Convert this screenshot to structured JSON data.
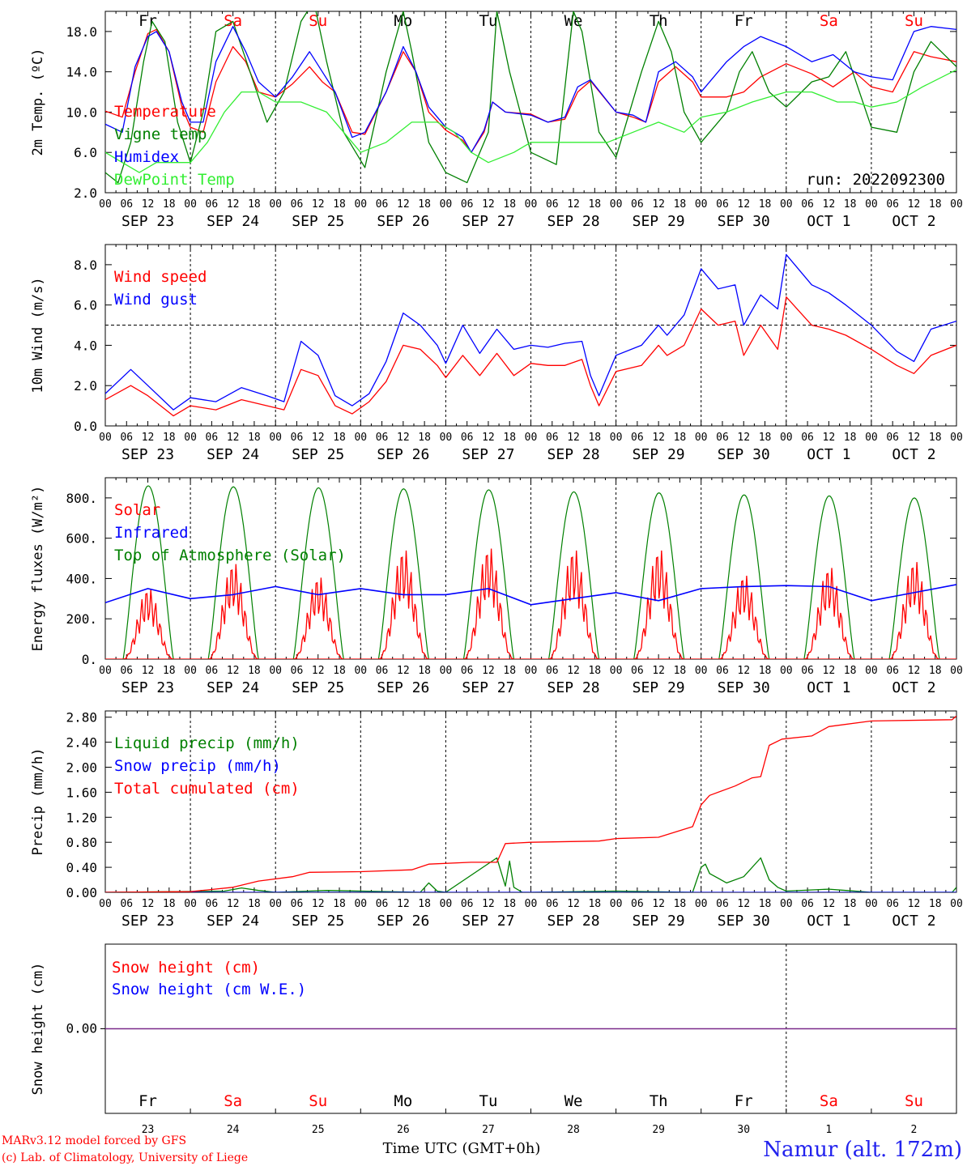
{
  "colors": {
    "red": "#ff0000",
    "blue": "#0000ff",
    "green": "#008000",
    "lightgreen": "#33ee33",
    "purple": "#7a2a8a",
    "black": "#000000"
  },
  "days": [
    "Fr",
    "Sa",
    "Su",
    "Mo",
    "Tu",
    "We",
    "Th",
    "Fr",
    "Sa",
    "Su"
  ],
  "weekend_flags": [
    false,
    true,
    true,
    false,
    false,
    false,
    false,
    false,
    true,
    true
  ],
  "date_labels": [
    "SEP 23",
    "SEP 24",
    "SEP 25",
    "SEP 26",
    "SEP 27",
    "SEP 28",
    "SEP 29",
    "SEP 30",
    "OCT  1",
    "OCT  2"
  ],
  "day_numbers": [
    "23",
    "24",
    "25",
    "26",
    "27",
    "28",
    "29",
    "30",
    "1",
    "2"
  ],
  "hour_ticks": [
    "00",
    "06",
    "12",
    "18"
  ],
  "run_label": "run: 2022092300",
  "footer": {
    "line1": "MARv3.12 model forced by GFS",
    "line2": "(c) Lab. of Climatology, University of Liege",
    "time_axis": "Time UTC (GMT+0h)",
    "station": "Namur (alt. 172m)"
  },
  "chart_data": [
    {
      "type": "line",
      "ylabel": "2m Temp. (ºC)",
      "ylim": [
        2,
        20
      ],
      "yticks": [
        "2.0",
        "6.0",
        "10.0",
        "14.0",
        "18.0"
      ],
      "ytick_values": [
        2,
        6,
        10,
        14,
        18
      ],
      "x_unit": "days since SEP 23 00 UTC",
      "series": [
        {
          "name": "Temperature",
          "color": "#ff0000",
          "x": [
            0,
            0.2,
            0.35,
            0.5,
            0.6,
            0.75,
            0.9,
            1.0,
            1.15,
            1.3,
            1.5,
            1.65,
            1.8,
            2.0,
            2.2,
            2.4,
            2.55,
            2.7,
            2.9,
            3.05,
            3.3,
            3.5,
            3.65,
            3.8,
            4.0,
            4.2,
            4.3,
            4.45,
            4.55,
            4.7,
            5.0,
            5.2,
            5.4,
            5.55,
            5.7,
            6.0,
            6.2,
            6.35,
            6.5,
            6.7,
            6.9,
            7.0,
            7.3,
            7.5,
            7.7,
            8.0,
            8.3,
            8.55,
            8.8,
            9.0,
            9.25,
            9.5,
            9.7,
            10.0
          ],
          "y": [
            10.1,
            9.5,
            14,
            17.8,
            18.2,
            16,
            10.5,
            8.5,
            8,
            13,
            16.5,
            15,
            12,
            11.5,
            12.8,
            14.5,
            13,
            12,
            8,
            7.8,
            12,
            16,
            14,
            10,
            8.2,
            7.2,
            6,
            8,
            11,
            10,
            9.8,
            9,
            9.3,
            12,
            13.1,
            10,
            9.5,
            9,
            13,
            14.5,
            13,
            11.5,
            11.5,
            12,
            13.5,
            14.8,
            13.8,
            12.5,
            14,
            12.5,
            12,
            16,
            15.5,
            15
          ]
        },
        {
          "name": "Vigne temp",
          "color": "#008000",
          "x": [
            0,
            0.15,
            0.3,
            0.45,
            0.55,
            0.7,
            0.85,
            1.0,
            1.15,
            1.3,
            1.5,
            1.7,
            1.9,
            2.1,
            2.3,
            2.45,
            2.6,
            2.8,
            3.05,
            3.3,
            3.5,
            3.6,
            3.8,
            4.0,
            4.25,
            4.5,
            4.6,
            4.75,
            5.0,
            5.3,
            5.5,
            5.6,
            5.8,
            6.0,
            6.3,
            6.5,
            6.65,
            6.8,
            7.0,
            7.3,
            7.45,
            7.6,
            7.8,
            8.0,
            8.3,
            8.5,
            8.7,
            9.0,
            9.3,
            9.5,
            9.7,
            10.0
          ],
          "y": [
            4,
            3,
            7,
            15,
            19,
            17,
            9,
            5,
            10,
            18,
            19,
            14,
            9,
            12,
            19,
            21,
            15,
            8,
            4.5,
            14,
            20,
            16,
            7,
            4,
            3,
            8,
            20,
            14,
            6,
            4.8,
            20,
            18,
            8,
            5.5,
            14,
            19,
            16,
            10,
            7,
            10,
            14,
            16,
            12,
            10.5,
            13,
            13.5,
            16,
            8.5,
            8,
            14,
            17,
            14.5
          ]
        },
        {
          "name": "Humidex",
          "color": "#0000ff",
          "x": [
            0,
            0.2,
            0.35,
            0.5,
            0.6,
            0.75,
            0.9,
            1.0,
            1.15,
            1.3,
            1.5,
            1.65,
            1.8,
            2.0,
            2.2,
            2.4,
            2.55,
            2.7,
            2.9,
            3.05,
            3.3,
            3.5,
            3.65,
            3.8,
            4.0,
            4.2,
            4.3,
            4.45,
            4.55,
            4.7,
            5.0,
            5.2,
            5.4,
            5.55,
            5.7,
            6.0,
            6.2,
            6.35,
            6.5,
            6.7,
            6.9,
            7.0,
            7.3,
            7.5,
            7.7,
            8.0,
            8.3,
            8.55,
            8.8,
            9.0,
            9.25,
            9.5,
            9.7,
            10.0
          ],
          "y": [
            8.8,
            8,
            14.5,
            17.5,
            18,
            16,
            11,
            9,
            9,
            15,
            18.5,
            16,
            13,
            11.5,
            13.5,
            16,
            14,
            12,
            7.5,
            8,
            12,
            16.5,
            14,
            10.5,
            8.5,
            7.5,
            6,
            8.2,
            11,
            10,
            9.7,
            9,
            9.5,
            12.5,
            13.2,
            10,
            9.7,
            9,
            14,
            15,
            13.5,
            12,
            15,
            16.5,
            17.5,
            16.5,
            15,
            15.7,
            14,
            13.5,
            13.2,
            18,
            18.5,
            18.2
          ]
        },
        {
          "name": "DewPoint Temp",
          "color": "#33ee33",
          "x": [
            0,
            0.2,
            0.4,
            0.6,
            0.8,
            1.0,
            1.2,
            1.4,
            1.6,
            1.8,
            2.0,
            2.3,
            2.6,
            2.8,
            3.0,
            3.3,
            3.6,
            3.9,
            4.1,
            4.3,
            4.5,
            4.8,
            5.0,
            5.3,
            5.6,
            5.9,
            6.2,
            6.5,
            6.8,
            7.0,
            7.3,
            7.6,
            7.8,
            8.0,
            8.3,
            8.6,
            8.8,
            9.0,
            9.3,
            9.6,
            10.0
          ],
          "y": [
            6,
            5,
            4,
            5,
            5,
            5,
            7,
            10,
            12,
            12,
            11,
            11,
            10,
            8,
            6,
            7,
            9,
            9,
            8,
            6,
            5,
            6,
            7,
            7,
            7,
            7,
            8,
            9,
            8,
            9.5,
            10,
            11,
            11.5,
            12,
            12,
            11,
            11,
            10.5,
            11,
            12.5,
            14.2
          ]
        }
      ]
    },
    {
      "type": "line",
      "ylabel": "10m Wind (m/s)",
      "ylim": [
        0,
        9
      ],
      "yticks": [
        "0.0",
        "2.0",
        "4.0",
        "6.0",
        "8.0"
      ],
      "ytick_values": [
        0,
        2,
        4,
        6,
        8
      ],
      "threshold": 5,
      "series": [
        {
          "name": "Wind speed",
          "color": "#ff0000",
          "x": [
            0,
            0.3,
            0.5,
            0.8,
            1.0,
            1.3,
            1.6,
            1.9,
            2.1,
            2.3,
            2.5,
            2.7,
            2.9,
            3.1,
            3.3,
            3.5,
            3.7,
            3.9,
            4.0,
            4.2,
            4.4,
            4.6,
            4.8,
            5.0,
            5.2,
            5.4,
            5.6,
            5.7,
            5.8,
            6.0,
            6.3,
            6.5,
            6.6,
            6.8,
            7.0,
            7.2,
            7.4,
            7.5,
            7.7,
            7.9,
            8.0,
            8.3,
            8.5,
            8.7,
            9.0,
            9.3,
            9.5,
            9.7,
            10.0
          ],
          "y": [
            1.3,
            2,
            1.5,
            0.5,
            1,
            0.8,
            1.3,
            1,
            0.8,
            2.8,
            2.5,
            1,
            0.6,
            1.2,
            2.2,
            4,
            3.8,
            3,
            2.4,
            3.5,
            2.5,
            3.6,
            2.5,
            3.1,
            3,
            3,
            3.3,
            2,
            1,
            2.7,
            3,
            4,
            3.5,
            4,
            5.8,
            5,
            5.2,
            3.5,
            5,
            3.8,
            6.4,
            5,
            4.8,
            4.5,
            3.8,
            3,
            2.6,
            3.5,
            4
          ]
        },
        {
          "name": "Wind gust",
          "color": "#0000ff",
          "x": [
            0,
            0.3,
            0.5,
            0.8,
            1.0,
            1.3,
            1.6,
            1.9,
            2.1,
            2.3,
            2.5,
            2.7,
            2.9,
            3.1,
            3.3,
            3.5,
            3.7,
            3.9,
            4.0,
            4.2,
            4.4,
            4.6,
            4.8,
            5.0,
            5.2,
            5.4,
            5.6,
            5.7,
            5.8,
            6.0,
            6.3,
            6.5,
            6.6,
            6.8,
            7.0,
            7.2,
            7.4,
            7.5,
            7.7,
            7.9,
            8.0,
            8.3,
            8.5,
            8.7,
            9.0,
            9.3,
            9.5,
            9.7,
            10.0
          ],
          "y": [
            1.6,
            2.8,
            2,
            0.8,
            1.4,
            1.2,
            1.9,
            1.5,
            1.2,
            4.2,
            3.5,
            1.5,
            1,
            1.6,
            3.2,
            5.6,
            5,
            4,
            3.1,
            5,
            3.6,
            4.8,
            3.8,
            4,
            3.9,
            4.1,
            4.2,
            2.5,
            1.5,
            3.5,
            4,
            5,
            4.5,
            5.5,
            7.8,
            6.8,
            7,
            5,
            6.5,
            5.8,
            8.5,
            7,
            6.6,
            6,
            5,
            3.7,
            3.2,
            4.8,
            5.2
          ]
        }
      ]
    },
    {
      "type": "line",
      "ylabel": "Energy fluxes (W/m²)",
      "ylim": [
        0,
        900
      ],
      "yticks": [
        "0.",
        "200.",
        "400.",
        "600.",
        "800."
      ],
      "ytick_values": [
        0,
        200,
        400,
        600,
        800
      ],
      "solar_peaks": [
        360,
        490,
        420,
        560,
        570,
        560,
        560,
        430,
        470,
        500
      ],
      "toa_peaks": [
        860,
        855,
        850,
        845,
        840,
        830,
        825,
        815,
        810,
        800
      ],
      "infrared_x": [
        0,
        0.5,
        1.0,
        1.5,
        2.0,
        2.5,
        3.0,
        3.5,
        4.0,
        4.5,
        5.0,
        5.5,
        6.0,
        6.5,
        7.0,
        7.5,
        8.0,
        8.5,
        9.0,
        9.5,
        10.0
      ],
      "infrared_y": [
        280,
        350,
        300,
        320,
        360,
        320,
        350,
        320,
        320,
        350,
        270,
        300,
        330,
        290,
        350,
        360,
        365,
        360,
        290,
        330,
        370
      ],
      "series": [
        {
          "name": "Solar",
          "color": "#ff0000"
        },
        {
          "name": "Infrared",
          "color": "#0000ff"
        },
        {
          "name": "Top of Atmosphere (Solar)",
          "color": "#008000"
        }
      ]
    },
    {
      "type": "line",
      "ylabel": "Precip (mm/h)",
      "ylim": [
        0,
        2.9
      ],
      "yticks": [
        "0.00",
        "0.40",
        "0.80",
        "1.20",
        "1.60",
        "2.00",
        "2.40",
        "2.80"
      ],
      "ytick_values": [
        0,
        0.4,
        0.8,
        1.2,
        1.6,
        2.0,
        2.4,
        2.8
      ],
      "series": [
        {
          "name": "Liquid precip (mm/h)",
          "color": "#008000",
          "x": [
            0,
            1.4,
            1.6,
            1.8,
            2.0,
            2.6,
            3.7,
            3.8,
            3.9,
            4.0,
            4.6,
            4.7,
            4.75,
            4.8,
            4.9,
            5.0,
            6.0,
            6.9,
            7.0,
            7.05,
            7.1,
            7.3,
            7.5,
            7.7,
            7.8,
            7.9,
            8.0,
            8.5,
            8.7,
            9.0,
            9.95,
            10.0
          ],
          "y": [
            0,
            0.02,
            0.07,
            0.03,
            0,
            0.03,
            0,
            0.15,
            0.02,
            0,
            0.55,
            0.1,
            0.5,
            0.08,
            0,
            0,
            0.02,
            0,
            0.4,
            0.45,
            0.3,
            0.15,
            0.25,
            0.55,
            0.2,
            0.08,
            0.02,
            0.05,
            0.03,
            0,
            0,
            0.08
          ]
        },
        {
          "name": "Snow precip (mm/h)",
          "color": "#0000ff",
          "x": [
            0,
            10
          ],
          "y": [
            0,
            0
          ]
        },
        {
          "name": "Total cumulated (cm)",
          "color": "#ff0000",
          "x": [
            0,
            1.0,
            1.5,
            1.8,
            2.2,
            2.4,
            3.0,
            3.6,
            3.8,
            4.3,
            4.6,
            4.7,
            5.0,
            5.8,
            6.0,
            6.5,
            6.9,
            7.0,
            7.1,
            7.4,
            7.6,
            7.7,
            7.8,
            7.95,
            8.3,
            8.5,
            9.0,
            9.95,
            10.0
          ],
          "y": [
            0,
            0.01,
            0.08,
            0.18,
            0.25,
            0.32,
            0.33,
            0.36,
            0.45,
            0.48,
            0.48,
            0.78,
            0.8,
            0.82,
            0.86,
            0.88,
            1.05,
            1.4,
            1.55,
            1.7,
            1.83,
            1.85,
            2.35,
            2.45,
            2.5,
            2.65,
            2.74,
            2.76,
            2.82
          ]
        }
      ]
    },
    {
      "type": "line",
      "ylabel": "Snow height (cm)",
      "yticks": [
        "0.00"
      ],
      "series": [
        {
          "name": "Snow height (cm)",
          "color": "#ff0000",
          "x": [
            0,
            10
          ],
          "y": [
            0,
            0
          ]
        },
        {
          "name": "Snow height (cm W.E.)",
          "color": "#0000ff",
          "x": [
            0,
            10
          ],
          "y": [
            0,
            0
          ]
        }
      ]
    }
  ]
}
